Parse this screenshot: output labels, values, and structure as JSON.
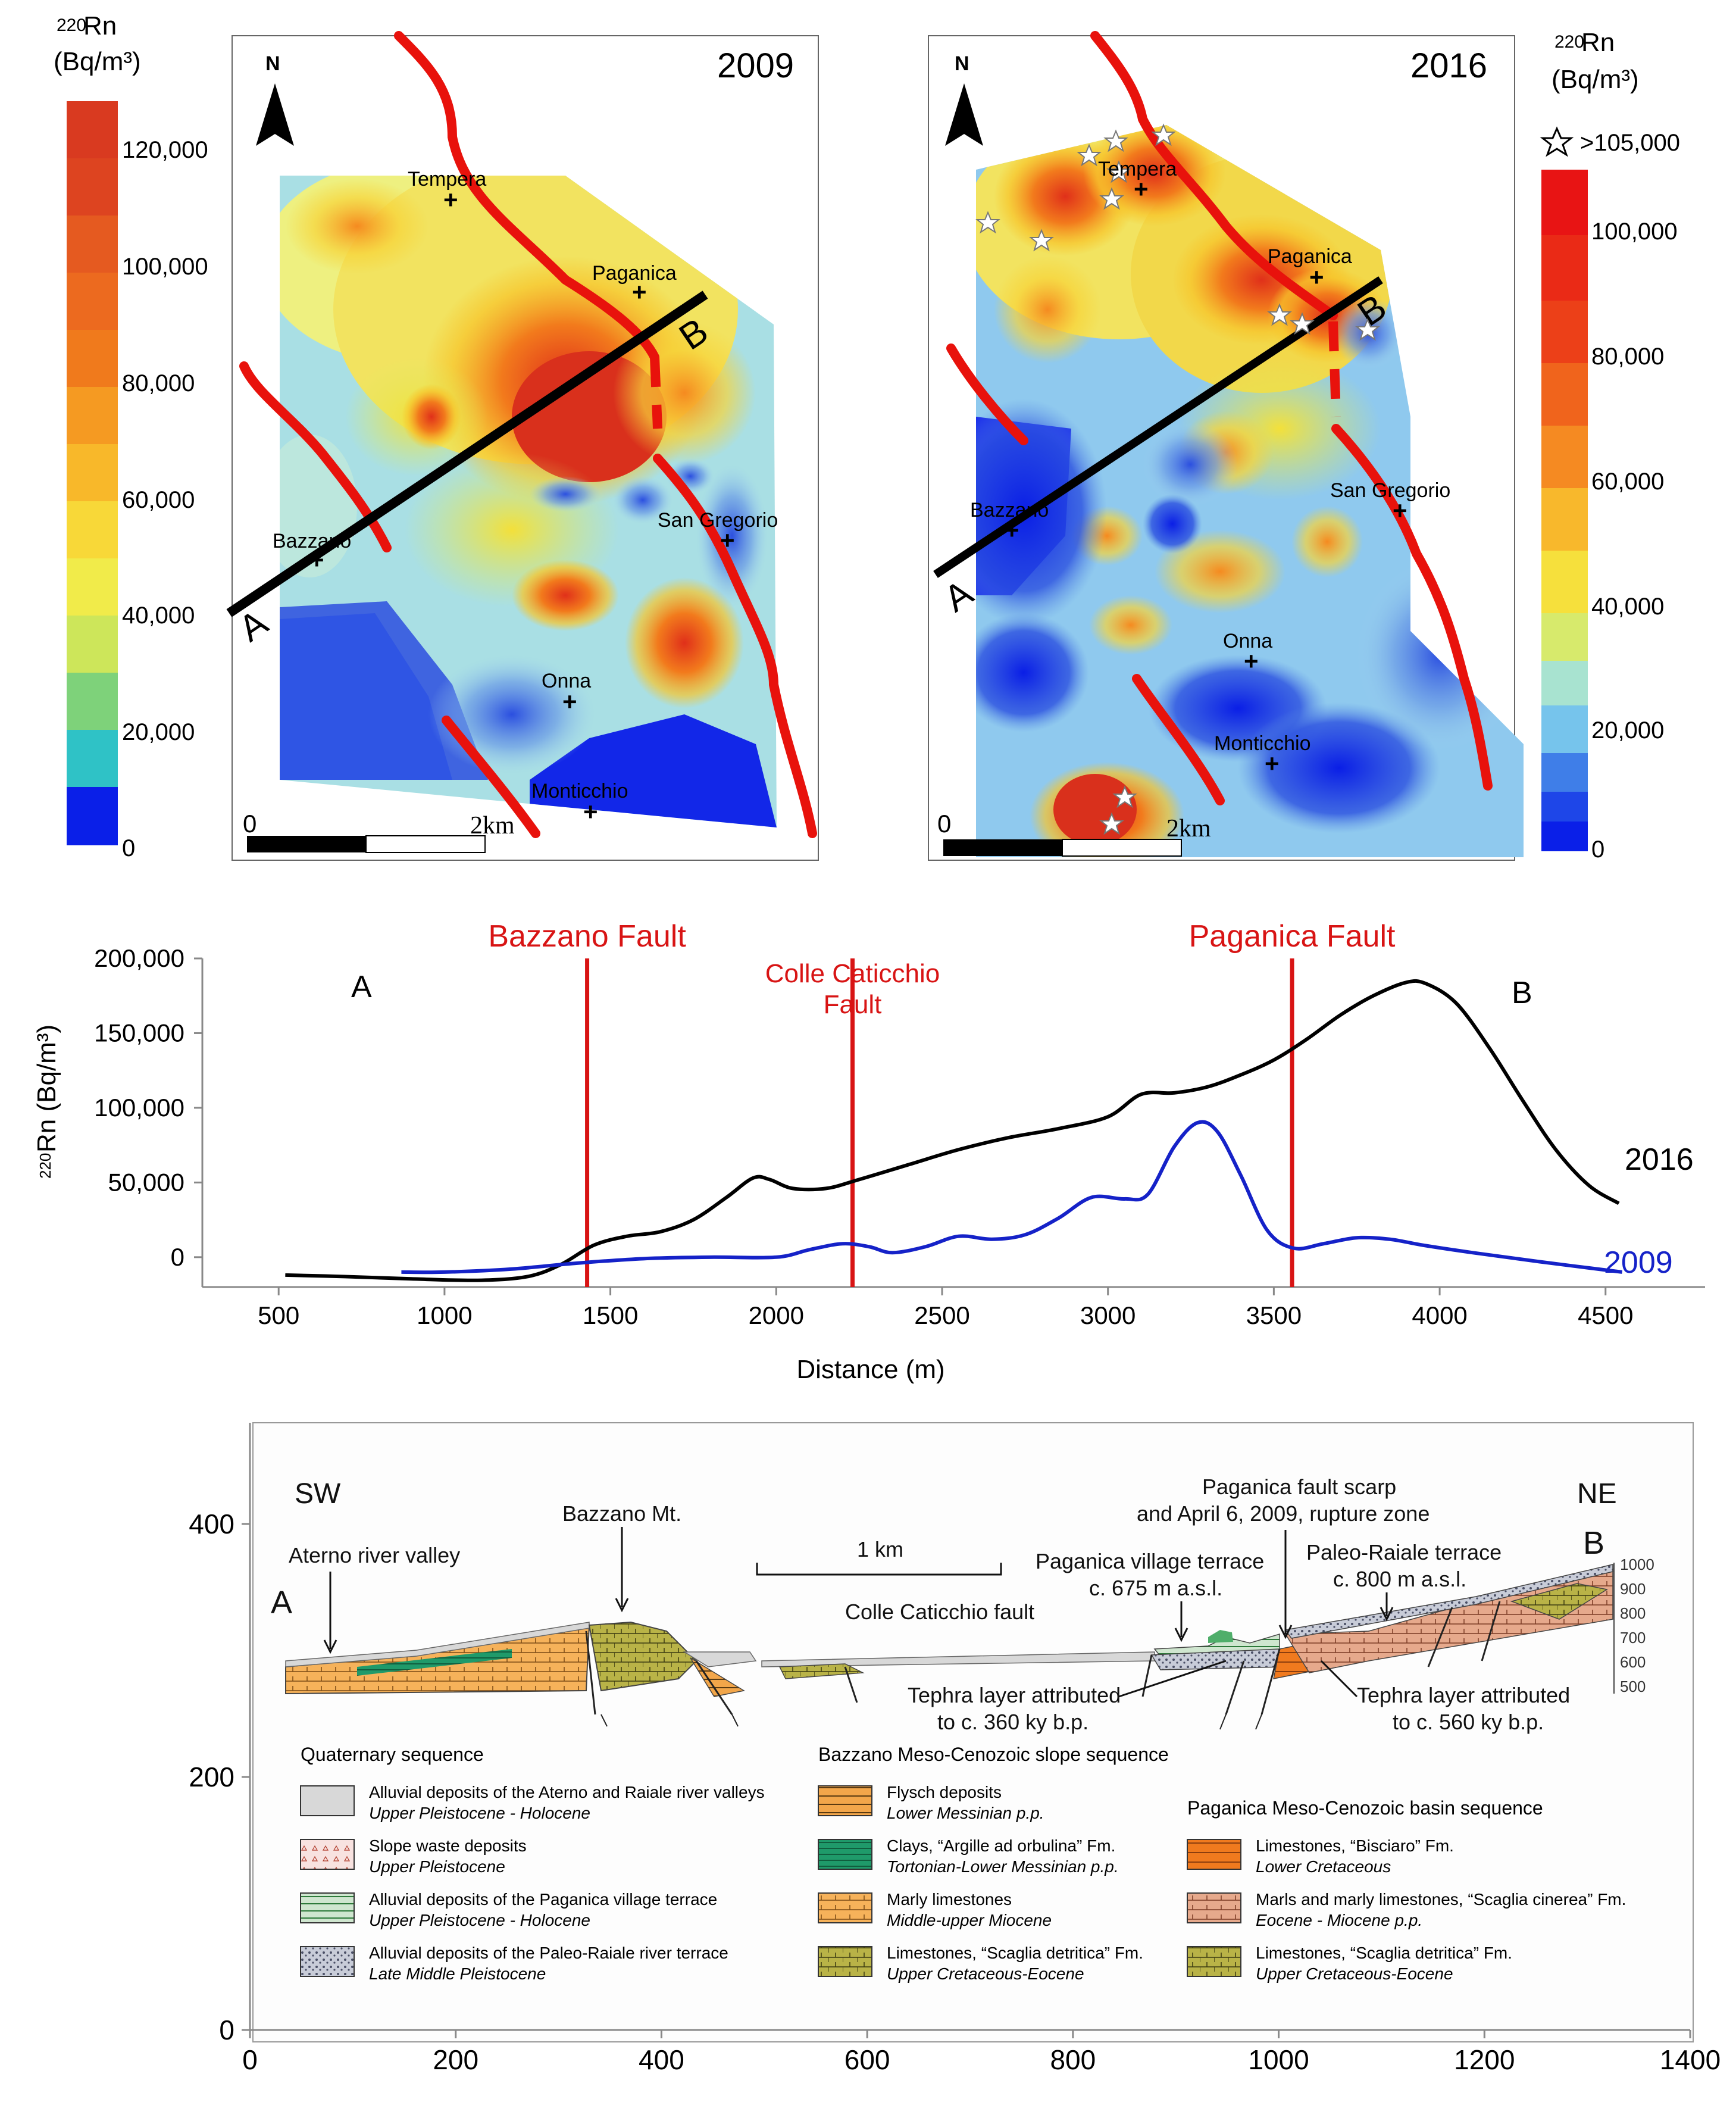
{
  "colors": {
    "fault": "#e8120c",
    "profile_2016": "#000000",
    "profile_2009": "#1522c8",
    "fault_line_profile": "#d81414"
  },
  "maps": {
    "left": {
      "year": "2009",
      "north": "N",
      "scale_zero": "0",
      "scale_end": "2km",
      "section_a": "A",
      "section_b": "B",
      "places": [
        "Tempera",
        "Paganica",
        "San Gregorio",
        "Bazzano",
        "Onna",
        "Monticchio"
      ]
    },
    "right": {
      "year": "2016",
      "north": "N",
      "scale_zero": "0",
      "scale_end": "2km",
      "section_a": "A",
      "section_b": "B",
      "places": [
        "Tempera",
        "Paganica",
        "San Gregorio",
        "Bazzano",
        "Onna",
        "Monticchio"
      ]
    },
    "legend_left": {
      "title_sup": "220",
      "title_main": "Rn",
      "units": "(Bq/m³)",
      "ticks": [
        "120,000",
        "100,000",
        "80,000",
        "60,000",
        "40,000",
        "20,000",
        "0"
      ]
    },
    "legend_right": {
      "title_sup": "220",
      "title_main": "Rn",
      "units": "(Bq/m³)",
      "star_label": ">105,000",
      "ticks": [
        "100,000",
        "80,000",
        "60,000",
        "40,000",
        "20,000",
        "0"
      ]
    }
  },
  "chart_data": [
    {
      "type": "line",
      "title": "",
      "xlabel": "Distance (m)",
      "ylabel_sup": "220",
      "ylabel": "Rn (Bq/m³)",
      "xlim": [
        270,
        4800
      ],
      "ylim": [
        -20000,
        200000
      ],
      "xticks": [
        500,
        1000,
        1500,
        2000,
        2500,
        3000,
        3500,
        4000,
        4500
      ],
      "yticks": [
        0,
        50000,
        100000,
        150000,
        200000
      ],
      "xtick_labels": [
        "500",
        "1000",
        "1500",
        "2000",
        "2500",
        "3000",
        "3500",
        "4000",
        "4500"
      ],
      "ytick_labels": [
        "0",
        "50,000",
        "100,000",
        "150,000",
        "200,000"
      ],
      "end_a": "A",
      "end_b": "B",
      "faults": [
        {
          "name": "Bazzano Fault",
          "x": 1430
        },
        {
          "name_line1": "Colle Caticchio",
          "name_line2": "Fault",
          "x": 2230
        },
        {
          "name": "Paganica Fault",
          "x": 3555
        }
      ],
      "series": [
        {
          "name": "2016",
          "x": [
            520,
            700,
            900,
            1100,
            1250,
            1350,
            1450,
            1550,
            1650,
            1750,
            1850,
            1930,
            1980,
            2050,
            2150,
            2250,
            2400,
            2550,
            2700,
            2850,
            3000,
            3100,
            3200,
            3300,
            3400,
            3500,
            3600,
            3700,
            3800,
            3900,
            3960,
            4050,
            4150,
            4250,
            4350,
            4450,
            4540
          ],
          "values": [
            -12000,
            -13000,
            -14500,
            -15500,
            -13000,
            -5000,
            8000,
            14000,
            17000,
            25000,
            40000,
            53000,
            52000,
            46000,
            46000,
            52000,
            62000,
            72000,
            80000,
            86000,
            94000,
            109000,
            110000,
            114000,
            122000,
            132000,
            146000,
            162000,
            175000,
            184000,
            183000,
            170000,
            140000,
            105000,
            72000,
            48000,
            36000
          ]
        },
        {
          "name": "2009",
          "x": [
            870,
            1000,
            1200,
            1400,
            1600,
            1800,
            2000,
            2100,
            2200,
            2280,
            2350,
            2450,
            2550,
            2650,
            2750,
            2850,
            2950,
            3050,
            3120,
            3200,
            3270,
            3330,
            3400,
            3480,
            3560,
            3650,
            3750,
            3850,
            3950,
            4100,
            4300,
            4550
          ],
          "values": [
            -10000,
            -10000,
            -8000,
            -4000,
            -1000,
            0,
            0,
            5000,
            9000,
            7000,
            3000,
            7000,
            14000,
            12000,
            15000,
            26000,
            40000,
            39000,
            42000,
            74000,
            90000,
            84000,
            55000,
            18000,
            6000,
            9000,
            13000,
            12000,
            8000,
            3000,
            -3000,
            -10000
          ]
        }
      ]
    },
    {
      "type": "cross-section",
      "xlim": [
        0,
        1400
      ],
      "ylim": [
        0,
        480
      ],
      "xticks": [
        0,
        200,
        400,
        600,
        800,
        1000,
        1200,
        1400
      ],
      "yticks": [
        0,
        200,
        400
      ],
      "xtick_labels": [
        "0",
        "200",
        "400",
        "600",
        "800",
        "1000",
        "1200",
        "1400"
      ],
      "ytick_labels": [
        "0",
        "200",
        "400"
      ],
      "elev_ticks": [
        "1000",
        "900",
        "800",
        "700",
        "600",
        "500"
      ],
      "annotations": {
        "sw": "SW",
        "ne": "NE",
        "end_a": "A",
        "end_b": "B",
        "aterno": "Aterno river valley",
        "bazzano_mt": "Bazzano Mt.",
        "scale": "1 km",
        "colle": "Colle Caticchio fault",
        "village_terrace_1": "Paganica village terrace",
        "village_terrace_2": "c. 675 m a.s.l.",
        "scarp_1": "Paganica fault scarp",
        "scarp_2": "and April 6, 2009, rupture zone",
        "paleo_1": "Paleo-Raiale terrace",
        "paleo_2": "c. 800 m a.s.l.",
        "tephra360_1": "Tephra layer attributed",
        "tephra360_2": "to c. 360 ky b.p.",
        "tephra560_1": "Tephra layer attributed",
        "tephra560_2": "to c. 560 ky b.p."
      },
      "legend": {
        "quaternary_title": "Quaternary sequence",
        "bazzano_title": "Bazzano Meso-Cenozoic slope sequence",
        "paganica_title": "Paganica Meso-Cenozoic basin sequence",
        "quaternary": [
          {
            "name": "Alluvial deposits of the Aterno and Raiale river valleys",
            "age": "Upper Pleistocene - Holocene"
          },
          {
            "name": "Slope waste deposits",
            "age": "Upper Pleistocene"
          },
          {
            "name": "Alluvial deposits of  the Paganica village terrace",
            "age": "Upper Pleistocene - Holocene"
          },
          {
            "name": "Alluvial deposits of the Paleo-Raiale river terrace",
            "age": "Late Middle Pleistocene"
          }
        ],
        "bazzano": [
          {
            "name": "Flysch deposits",
            "age": "Lower Messinian  p.p."
          },
          {
            "name": "Clays, “Argille ad orbulina” Fm.",
            "age": "Tortonian-Lower Messinian  p.p."
          },
          {
            "name": "Marly limestones",
            "age": "Middle-upper Miocene"
          },
          {
            "name": "Limestones, “Scaglia detritica” Fm.",
            "age": "Upper Cretaceous-Eocene"
          }
        ],
        "paganica": [
          {
            "name": "Limestones, “Bisciaro”  Fm.",
            "age": "Lower Cretaceous"
          },
          {
            "name": "Marls and marly limestones, “Scaglia cinerea” Fm.",
            "age": "Eocene - Miocene p.p."
          },
          {
            "name": "Limestones, “Scaglia detritica” Fm.",
            "age": "Upper Cretaceous-Eocene"
          }
        ]
      }
    }
  ]
}
